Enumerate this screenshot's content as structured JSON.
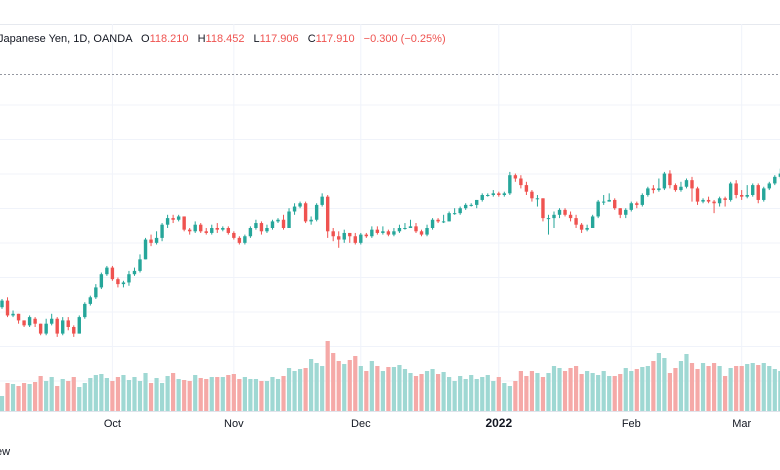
{
  "legend": {
    "symbol": "Japanese Yen, 1D, OANDA",
    "open_label": "O",
    "open": "118.210",
    "high_label": "H",
    "high": "118.452",
    "low_label": "L",
    "low": "117.906",
    "close_label": "C",
    "close": "117.910",
    "change": "−0.300 (−0.25%)"
  },
  "footer_text": "ew",
  "colors": {
    "up": "#26a69a",
    "down": "#ef5350",
    "up_volume": "#9fd8d3",
    "down_volume": "#f5a9a7",
    "grid": "#f0f3fa",
    "text": "#131722"
  },
  "chart_data": {
    "type": "candlestick",
    "x_labels": [
      "Oct",
      "Nov",
      "Dec",
      "2022",
      "Feb",
      "Mar"
    ],
    "x_label_index": [
      20,
      42,
      65,
      90,
      114,
      134
    ],
    "year_label": "2022",
    "grid": true,
    "price_range": [
      0,
      100
    ],
    "volume_range": [
      0,
      100
    ],
    "candles": [
      [
        32,
        36,
        31,
        37,
        15
      ],
      [
        36,
        27,
        26,
        38,
        28
      ],
      [
        27,
        28,
        26,
        30,
        27
      ],
      [
        28,
        24,
        22,
        28,
        25
      ],
      [
        24,
        21,
        20,
        24,
        28
      ],
      [
        21,
        26,
        20,
        27,
        27
      ],
      [
        25,
        22,
        20,
        26,
        29
      ],
      [
        22,
        16,
        15,
        22,
        35
      ],
      [
        16,
        22,
        15,
        25,
        30
      ],
      [
        22,
        25,
        21,
        28,
        34
      ],
      [
        25,
        16,
        14,
        26,
        25
      ],
      [
        16,
        24,
        15,
        26,
        32
      ],
      [
        24,
        20,
        18,
        26,
        30
      ],
      [
        20,
        16,
        14,
        21,
        34
      ],
      [
        16,
        26,
        16,
        27,
        24
      ],
      [
        26,
        34,
        25,
        35,
        28
      ],
      [
        34,
        38,
        33,
        39,
        33
      ],
      [
        38,
        44,
        37,
        46,
        36
      ],
      [
        44,
        52,
        43,
        53,
        37
      ],
      [
        52,
        56,
        51,
        57,
        33
      ],
      [
        56,
        49,
        48,
        57,
        30
      ],
      [
        49,
        46,
        44,
        50,
        34
      ],
      [
        46,
        47,
        44,
        48,
        36
      ],
      [
        47,
        52,
        45,
        54,
        31
      ],
      [
        52,
        54,
        51,
        56,
        34
      ],
      [
        54,
        61,
        53,
        64,
        30
      ],
      [
        61,
        73,
        61,
        74,
        38
      ],
      [
        73,
        71,
        69,
        76,
        28
      ],
      [
        71,
        74,
        70,
        78,
        33
      ],
      [
        74,
        82,
        72,
        83,
        28
      ],
      [
        82,
        86,
        80,
        88,
        35
      ],
      [
        86,
        85,
        83,
        88,
        38
      ],
      [
        85,
        87,
        84,
        88,
        32
      ],
      [
        87,
        79,
        78,
        87,
        31
      ],
      [
        79,
        78,
        76,
        80,
        30
      ],
      [
        78,
        82,
        77,
        84,
        36
      ],
      [
        82,
        78,
        77,
        83,
        33
      ],
      [
        78,
        77,
        76,
        80,
        32
      ],
      [
        77,
        80,
        76,
        82,
        34
      ],
      [
        80,
        79,
        77,
        83,
        34
      ],
      [
        79,
        80,
        78,
        81,
        34
      ],
      [
        80,
        77,
        76,
        81,
        36
      ],
      [
        77,
        74,
        73,
        78,
        37
      ],
      [
        74,
        71,
        70,
        75,
        32
      ],
      [
        71,
        75,
        70,
        76,
        34
      ],
      [
        75,
        80,
        74,
        81,
        32
      ],
      [
        80,
        83,
        79,
        85,
        32
      ],
      [
        83,
        78,
        76,
        84,
        30
      ],
      [
        78,
        80,
        77,
        82,
        30
      ],
      [
        80,
        84,
        79,
        85,
        34
      ],
      [
        84,
        85,
        83,
        86,
        32
      ],
      [
        85,
        80,
        79,
        88,
        35
      ],
      [
        80,
        90,
        80,
        92,
        43
      ],
      [
        90,
        93,
        88,
        95,
        40
      ],
      [
        93,
        95,
        92,
        96,
        42
      ],
      [
        95,
        84,
        83,
        96,
        43
      ],
      [
        84,
        85,
        82,
        87,
        52
      ],
      [
        85,
        94,
        84,
        95,
        48
      ],
      [
        94,
        99,
        93,
        101,
        45
      ],
      [
        99,
        78,
        74,
        100,
        70
      ],
      [
        78,
        75,
        72,
        80,
        58
      ],
      [
        75,
        73,
        68,
        78,
        50
      ],
      [
        73,
        77,
        71,
        79,
        47
      ],
      [
        77,
        75,
        71,
        77,
        51
      ],
      [
        75,
        71,
        70,
        77,
        55
      ],
      [
        71,
        76,
        70,
        77,
        45
      ],
      [
        76,
        75,
        74,
        77,
        40
      ],
      [
        75,
        79,
        74,
        81,
        50
      ],
      [
        79,
        77,
        76,
        81,
        45
      ],
      [
        77,
        78,
        76,
        81,
        40
      ],
      [
        78,
        76,
        75,
        79,
        44
      ],
      [
        76,
        78,
        75,
        80,
        44
      ],
      [
        78,
        80,
        77,
        82,
        46
      ],
      [
        80,
        80,
        79,
        83,
        42
      ],
      [
        80,
        81,
        80,
        85,
        38
      ],
      [
        81,
        78,
        77,
        83,
        35
      ],
      [
        78,
        76,
        75,
        79,
        37
      ],
      [
        76,
        80,
        75,
        82,
        40
      ],
      [
        80,
        85,
        79,
        86,
        42
      ],
      [
        85,
        84,
        83,
        86,
        37
      ],
      [
        84,
        84,
        83,
        88,
        39
      ],
      [
        84,
        89,
        84,
        90,
        34
      ],
      [
        89,
        89,
        88,
        92,
        30
      ],
      [
        89,
        92,
        88,
        93,
        35
      ],
      [
        92,
        94,
        91,
        95,
        32
      ],
      [
        94,
        94,
        93,
        95,
        36
      ],
      [
        94,
        97,
        92,
        97,
        32
      ],
      [
        97,
        100,
        96,
        101,
        34
      ],
      [
        100,
        100,
        99,
        101,
        36
      ],
      [
        100,
        101,
        99,
        103,
        30
      ],
      [
        101,
        100,
        99,
        102,
        34
      ],
      [
        100,
        101,
        99,
        102,
        28
      ],
      [
        101,
        112,
        100,
        114,
        25
      ],
      [
        112,
        110,
        108,
        113,
        30
      ],
      [
        110,
        106,
        104,
        112,
        40
      ],
      [
        106,
        102,
        100,
        108,
        35
      ],
      [
        102,
        98,
        96,
        103,
        40
      ],
      [
        98,
        98,
        93,
        100,
        38
      ],
      [
        98,
        86,
        84,
        98,
        34
      ],
      [
        86,
        86,
        76,
        88,
        38
      ],
      [
        86,
        88,
        80,
        90,
        45
      ],
      [
        88,
        91,
        86,
        92,
        43
      ],
      [
        91,
        88,
        87,
        92,
        40
      ],
      [
        88,
        86,
        84,
        90,
        43
      ],
      [
        86,
        82,
        80,
        88,
        45
      ],
      [
        82,
        79,
        77,
        83,
        37
      ],
      [
        79,
        80,
        78,
        82,
        40
      ],
      [
        80,
        87,
        80,
        88,
        38
      ],
      [
        87,
        96,
        86,
        97,
        36
      ],
      [
        96,
        96,
        94,
        100,
        40
      ],
      [
        96,
        97,
        96,
        101,
        35
      ],
      [
        97,
        92,
        91,
        98,
        35
      ],
      [
        92,
        88,
        86,
        92,
        37
      ],
      [
        88,
        91,
        86,
        92,
        43
      ],
      [
        91,
        95,
        90,
        96,
        40
      ],
      [
        95,
        94,
        92,
        96,
        42
      ],
      [
        94,
        100,
        93,
        101,
        44
      ],
      [
        100,
        104,
        99,
        105,
        45
      ],
      [
        104,
        103,
        101,
        106,
        50
      ],
      [
        103,
        104,
        102,
        110,
        58
      ],
      [
        104,
        113,
        103,
        114,
        53
      ],
      [
        113,
        106,
        104,
        115,
        38
      ],
      [
        106,
        103,
        102,
        107,
        43
      ],
      [
        103,
        105,
        102,
        108,
        50
      ],
      [
        105,
        109,
        104,
        110,
        57
      ],
      [
        109,
        104,
        96,
        111,
        48
      ],
      [
        104,
        96,
        94,
        105,
        42
      ],
      [
        96,
        97,
        95,
        98,
        48
      ],
      [
        97,
        96,
        95,
        99,
        45
      ],
      [
        96,
        95,
        89,
        97,
        48
      ],
      [
        95,
        98,
        93,
        99,
        45
      ],
      [
        98,
        97,
        93,
        99,
        35
      ],
      [
        97,
        107,
        96,
        108,
        43
      ],
      [
        107,
        100,
        98,
        109,
        45
      ],
      [
        100,
        99,
        97,
        103,
        45
      ],
      [
        99,
        100,
        98,
        106,
        47
      ],
      [
        100,
        106,
        99,
        107,
        48
      ],
      [
        106,
        97,
        95,
        107,
        46
      ],
      [
        97,
        104,
        96,
        105,
        48
      ],
      [
        104,
        107,
        103,
        108,
        45
      ],
      [
        107,
        111,
        106,
        112,
        42
      ],
      [
        111,
        113,
        110,
        116,
        40
      ]
    ],
    "candle_fields": [
      "open",
      "close",
      "low",
      "high",
      "volume"
    ]
  }
}
